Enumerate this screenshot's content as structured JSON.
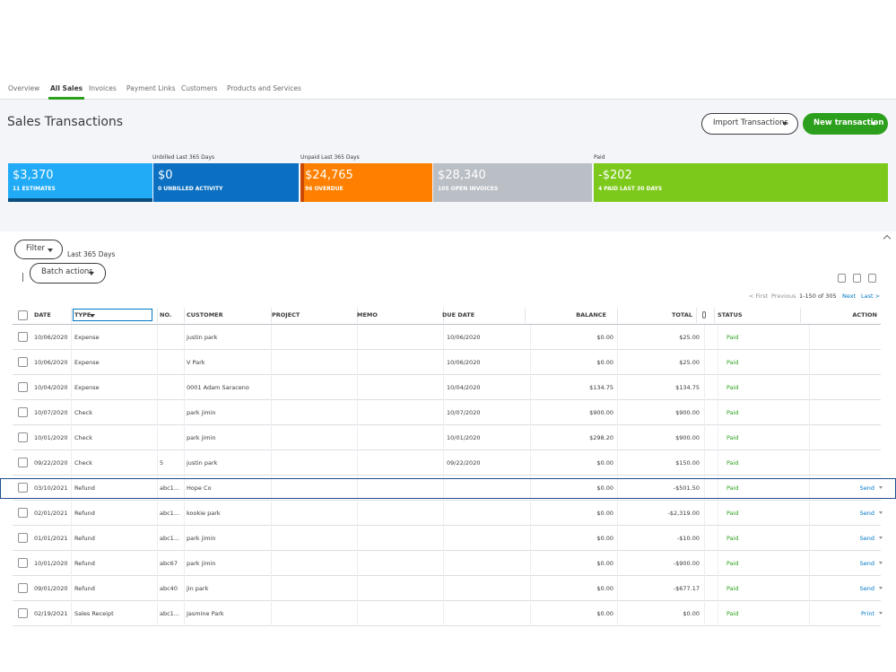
{
  "tabs": {
    "items": [
      "Overview",
      "All Sales",
      "Invoices",
      "Payment Links",
      "Customers",
      "Products and Services"
    ],
    "active": 1
  },
  "header": {
    "title": "Sales Transactions",
    "import_button": "Import Transactions",
    "new_button": "New transaction"
  },
  "money_bar": {
    "groups": [
      {
        "label": "Unbilled Last 365 Days"
      },
      {
        "label": "Unpaid Last 365 Days"
      },
      {
        "label": "Paid"
      }
    ],
    "tiles": [
      {
        "amount": "$3,370",
        "label": "11 ESTIMATES"
      },
      {
        "amount": "$0",
        "label": "0 UNBILLED ACTIVITY"
      },
      {
        "amount": "$24,765",
        "label": "96 OVERDUE"
      },
      {
        "amount": "$28,340",
        "label": "105 OPEN INVOICES"
      },
      {
        "amount": "-$202",
        "label": "4 PAID LAST 30 DAYS"
      }
    ]
  },
  "filters": {
    "filter_button": "Filter",
    "range": "Last 365 Days",
    "batch_button": "Batch actions"
  },
  "pagination": {
    "first": "< First",
    "previous": "Previous",
    "range": "1-150 of 305",
    "next": "Next",
    "last": "Last >"
  },
  "table": {
    "headers": [
      "DATE",
      "TYPE",
      "NO.",
      "CUSTOMER",
      "PROJECT",
      "MEMO",
      "DUE DATE",
      "BALANCE",
      "TOTAL",
      "STATUS",
      "ACTION"
    ],
    "selected_row": 6,
    "rows": [
      [
        "10/06/2020",
        "Expense",
        null,
        "justin park",
        null,
        null,
        "10/06/2020",
        "$0.00",
        "$25.00",
        "Paid",
        null
      ],
      [
        "10/06/2020",
        "Expense",
        null,
        "V Park",
        null,
        null,
        "10/06/2020",
        "$0.00",
        "$25.00",
        "Paid",
        null
      ],
      [
        "10/04/2020",
        "Expense",
        null,
        "0001 Adam Saraceno",
        null,
        null,
        "10/04/2020",
        "$134.75",
        "$134.75",
        "Paid",
        null
      ],
      [
        "10/07/2020",
        "Check",
        null,
        "park jimin",
        null,
        null,
        "10/07/2020",
        "$900.00",
        "$900.00",
        "Paid",
        null
      ],
      [
        "10/01/2020",
        "Check",
        null,
        "park jimin",
        null,
        null,
        "10/01/2020",
        "$298.20",
        "$900.00",
        "Paid",
        null
      ],
      [
        "09/22/2020",
        "Check",
        "5",
        "justin park",
        null,
        null,
        "09/22/2020",
        "$0.00",
        "$150.00",
        "Paid",
        null
      ],
      [
        "03/10/2021",
        "Refund",
        "abc1...",
        "Hope Co",
        null,
        null,
        null,
        "$0.00",
        "-$501.50",
        "Paid",
        "Send"
      ],
      [
        "02/01/2021",
        "Refund",
        "abc1...",
        "kookie park",
        null,
        null,
        null,
        "$0.00",
        "-$2,319.00",
        "Paid",
        "Send"
      ],
      [
        "01/01/2021",
        "Refund",
        "abc1...",
        "park jimin",
        null,
        null,
        null,
        "$0.00",
        "-$10.00",
        "Paid",
        "Send"
      ],
      [
        "10/01/2020",
        "Refund",
        "abc67",
        "park jimin",
        null,
        null,
        null,
        "$0.00",
        "-$900.00",
        "Paid",
        "Send"
      ],
      [
        "09/01/2020",
        "Refund",
        "abc40",
        "jin park",
        null,
        null,
        null,
        "$0.00",
        "-$677.17",
        "Paid",
        "Send"
      ],
      [
        "02/19/2021",
        "Sales Receipt",
        "abc1...",
        "Jasmine Park",
        null,
        null,
        null,
        "$0.00",
        "$0.00",
        "Paid",
        "Print"
      ]
    ]
  }
}
